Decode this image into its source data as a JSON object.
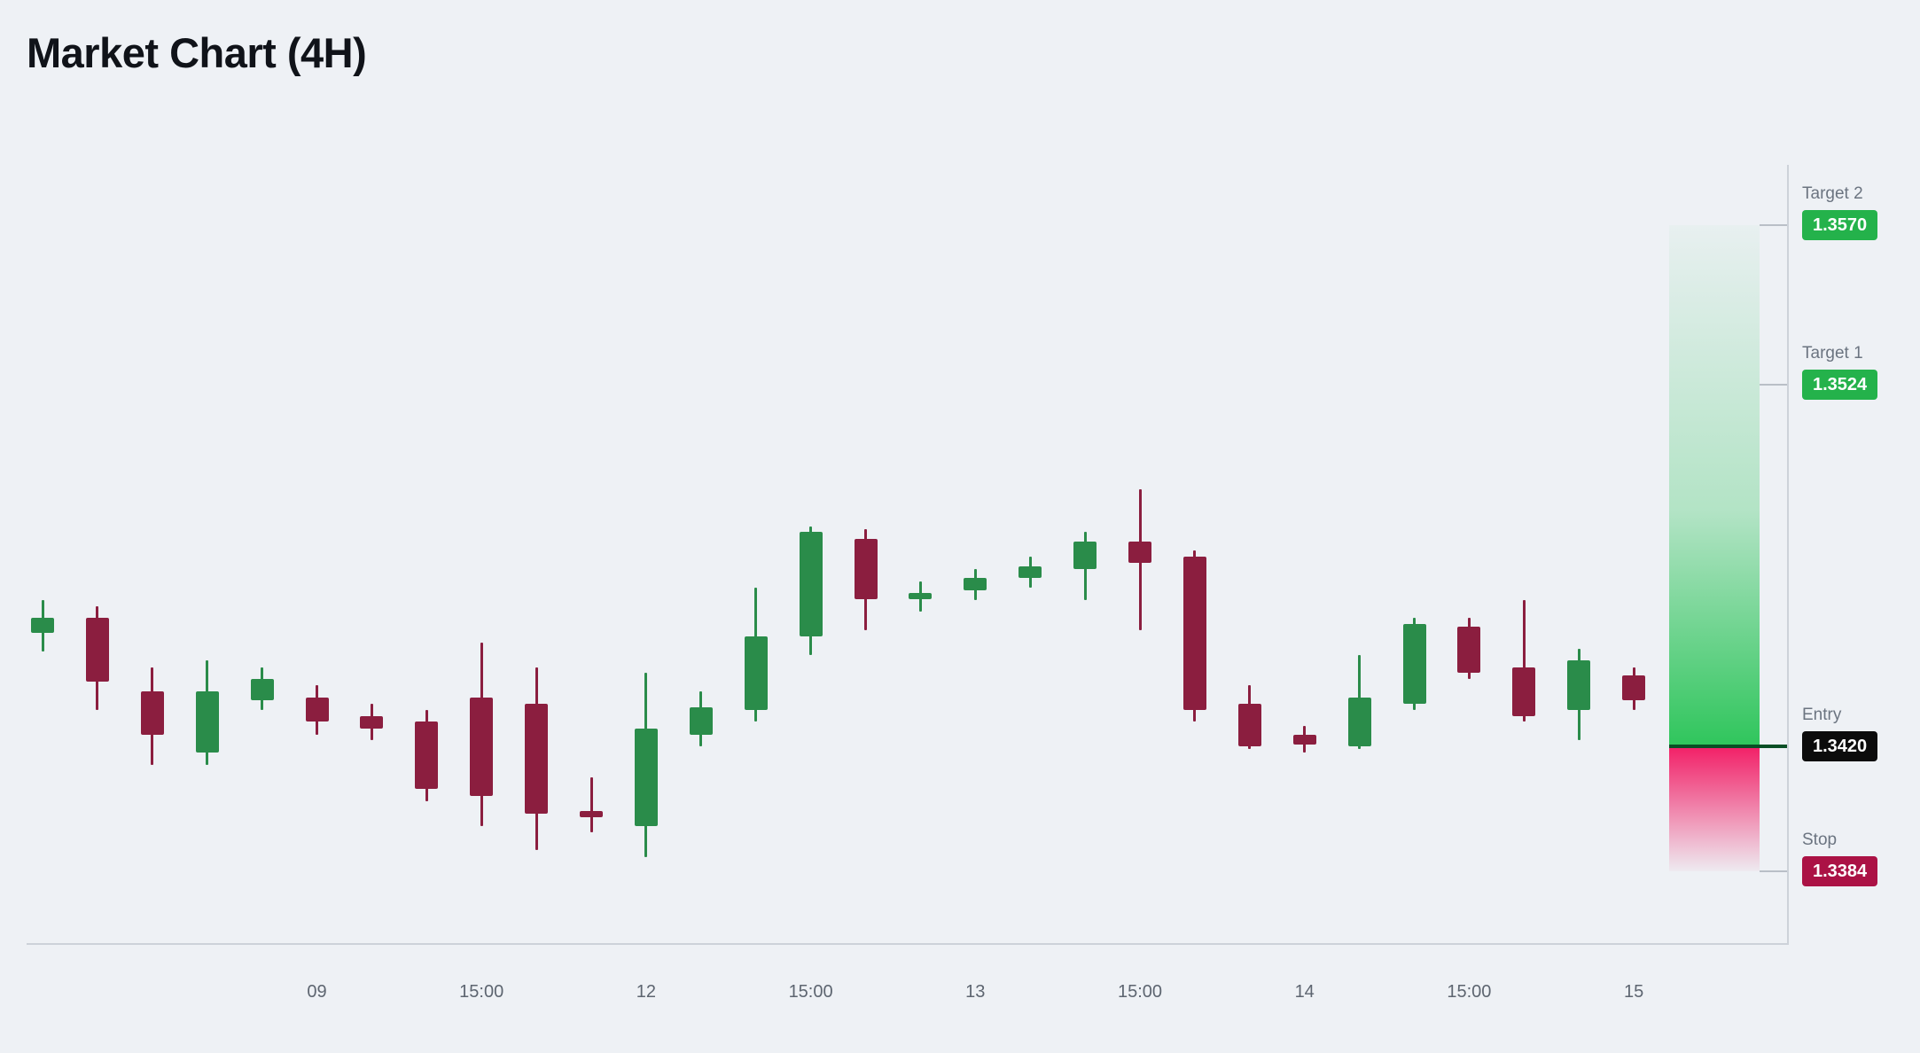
{
  "title": "Market Chart (4H)",
  "colors": {
    "background": "#eef1f5",
    "bullish": "#2a8c4a",
    "bearish": "#8b1e3f",
    "axis_line": "#cdd2d9",
    "time_label": "#5d6570",
    "level_label": "#6b7480",
    "target_badge_bg": "#24b24b",
    "entry_badge_bg": "#0c0c0c",
    "stop_badge_bg": "#ab1245",
    "badge_text": "#ffffff",
    "zone_green": "#29c457",
    "zone_pink": "#f2145f",
    "entry_line": "#0a4f25",
    "level_tick": "#b9bfc7"
  },
  "levels": {
    "target2": {
      "label": "Target 2",
      "price": "1.3570"
    },
    "target1": {
      "label": "Target 1",
      "price": "1.3524"
    },
    "entry": {
      "label": "Entry",
      "price": "1.3420"
    },
    "stop": {
      "label": "Stop",
      "price": "1.3384"
    }
  },
  "chart_data": {
    "type": "candlestick",
    "title": "Market Chart (4H)",
    "timeframe": "4H",
    "grid": false,
    "price_axis": {
      "top": 1.3587,
      "bottom": 1.3363
    },
    "levels": {
      "target2": 1.357,
      "target1": 1.3524,
      "entry": 1.342,
      "stop": 1.3384
    },
    "x_tick_labels": [
      {
        "index": 5,
        "label": "09"
      },
      {
        "index": 8,
        "label": "15:00"
      },
      {
        "index": 11,
        "label": "12"
      },
      {
        "index": 14,
        "label": "15:00"
      },
      {
        "index": 17,
        "label": "13"
      },
      {
        "index": 20,
        "label": "15:00"
      },
      {
        "index": 23,
        "label": "14"
      },
      {
        "index": 26,
        "label": "15:00"
      },
      {
        "index": 29,
        "label": "15"
      }
    ],
    "candles": [
      {
        "o": 1.34527,
        "h": 1.34622,
        "l": 1.34474,
        "c": 1.34569
      },
      {
        "o": 1.34569,
        "h": 1.34604,
        "l": 1.34305,
        "c": 1.34386
      },
      {
        "o": 1.34358,
        "h": 1.34428,
        "l": 1.34146,
        "c": 1.34234
      },
      {
        "o": 1.34182,
        "h": 1.34446,
        "l": 1.34146,
        "c": 1.34358
      },
      {
        "o": 1.34333,
        "h": 1.34428,
        "l": 1.34305,
        "c": 1.34393
      },
      {
        "o": 1.3434,
        "h": 1.34375,
        "l": 1.34234,
        "c": 1.3427
      },
      {
        "o": 1.34287,
        "h": 1.34322,
        "l": 1.34217,
        "c": 1.34252
      },
      {
        "o": 1.3427,
        "h": 1.34305,
        "l": 1.34041,
        "c": 1.34076
      },
      {
        "o": 1.3434,
        "h": 1.34499,
        "l": 1.3397,
        "c": 1.34058
      },
      {
        "o": 1.34322,
        "h": 1.34428,
        "l": 1.339,
        "c": 1.34005
      },
      {
        "o": 1.34013,
        "h": 1.34111,
        "l": 1.33953,
        "c": 1.33995
      },
      {
        "o": 1.3397,
        "h": 1.34411,
        "l": 1.33882,
        "c": 1.34252
      },
      {
        "o": 1.34234,
        "h": 1.34358,
        "l": 1.34199,
        "c": 1.34312
      },
      {
        "o": 1.34305,
        "h": 1.34657,
        "l": 1.3427,
        "c": 1.34516
      },
      {
        "o": 1.34516,
        "h": 1.34833,
        "l": 1.34463,
        "c": 1.34816
      },
      {
        "o": 1.34798,
        "h": 1.34826,
        "l": 1.34534,
        "c": 1.34622
      },
      {
        "o": 1.34622,
        "h": 1.34675,
        "l": 1.34587,
        "c": 1.3464
      },
      {
        "o": 1.3465,
        "h": 1.3471,
        "l": 1.34622,
        "c": 1.34685
      },
      {
        "o": 1.34685,
        "h": 1.34745,
        "l": 1.34657,
        "c": 1.34717
      },
      {
        "o": 1.3471,
        "h": 1.34816,
        "l": 1.34622,
        "c": 1.34788
      },
      {
        "o": 1.34788,
        "h": 1.34939,
        "l": 1.34534,
        "c": 1.34728
      },
      {
        "o": 1.34745,
        "h": 1.34763,
        "l": 1.3427,
        "c": 1.34305
      },
      {
        "o": 1.34322,
        "h": 1.34375,
        "l": 1.34192,
        "c": 1.34199
      },
      {
        "o": 1.34234,
        "h": 1.34259,
        "l": 1.34182,
        "c": 1.34206
      },
      {
        "o": 1.34199,
        "h": 1.34463,
        "l": 1.34192,
        "c": 1.3434
      },
      {
        "o": 1.34322,
        "h": 1.34569,
        "l": 1.34305,
        "c": 1.34552
      },
      {
        "o": 1.34544,
        "h": 1.34569,
        "l": 1.34393,
        "c": 1.34411
      },
      {
        "o": 1.34428,
        "h": 1.34622,
        "l": 1.3427,
        "c": 1.34287
      },
      {
        "o": 1.34305,
        "h": 1.34481,
        "l": 1.34217,
        "c": 1.34446
      },
      {
        "o": 1.34404,
        "h": 1.34428,
        "l": 1.34305,
        "c": 1.34333
      }
    ]
  }
}
